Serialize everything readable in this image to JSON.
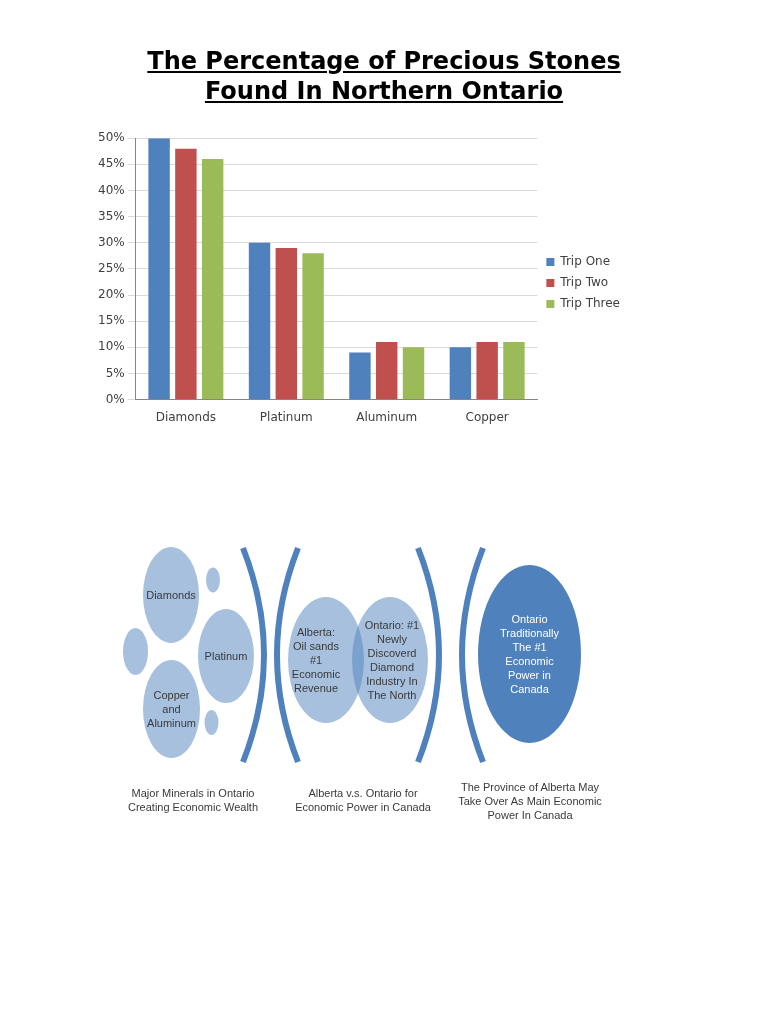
{
  "chart_data": [
    {
      "type": "bar",
      "title": "The Percentage of Precious Stones Found In Northern Ontario",
      "categories": [
        "Diamonds",
        "Platinum",
        "Aluminum",
        "Copper"
      ],
      "series": [
        {
          "name": "Trip One",
          "color": "#4f81bd",
          "values": [
            50,
            30,
            9,
            10
          ]
        },
        {
          "name": "Trip Two",
          "color": "#c0504d",
          "values": [
            48,
            29,
            11,
            11
          ]
        },
        {
          "name": "Trip Three",
          "color": "#9bbb59",
          "values": [
            46,
            28,
            10,
            11
          ]
        }
      ],
      "ylim": [
        0,
        50
      ],
      "yticks": [
        {
          "value": 0,
          "label": "0%"
        },
        {
          "value": 5,
          "label": "5%"
        },
        {
          "value": 10,
          "label": "10%"
        },
        {
          "value": 15,
          "label": "15%"
        },
        {
          "value": 20,
          "label": "20%"
        },
        {
          "value": 25,
          "label": "25%"
        },
        {
          "value": 30,
          "label": "30%"
        },
        {
          "value": 35,
          "label": "35%"
        },
        {
          "value": 40,
          "label": "40%"
        },
        {
          "value": 45,
          "label": "45%"
        },
        {
          "value": 50,
          "label": "50%"
        }
      ],
      "grid": "y",
      "legend": "right"
    },
    {
      "type": "other",
      "annotations": [
        "Diamonds",
        "Platinum",
        "Copper and Aluminum",
        "Major Minerals in Ontario Creating Economic Wealth",
        "Alberta: Oil sands #1 Economic Revenue",
        "Ontario: #1 Newly Discoverd Diamond Industry In The North",
        "Alberta v.s. Ontario for Economic Power in Canada",
        "Ontario Traditionally The #1 Economic Power in Canada",
        "The Province of Alberta May Take Over As Main Economic Power In Canada"
      ]
    }
  ]
}
